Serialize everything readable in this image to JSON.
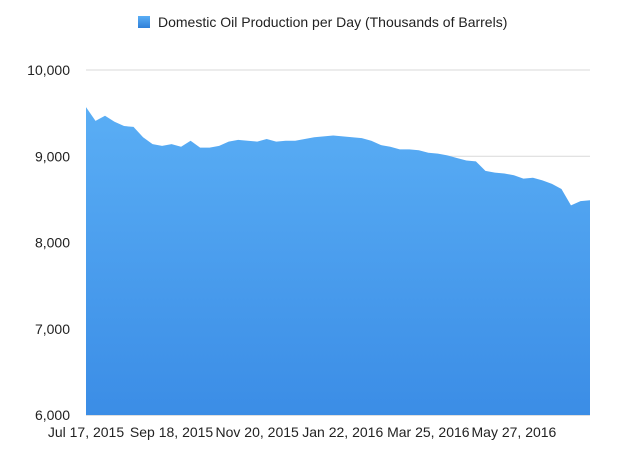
{
  "chart_data": {
    "type": "area",
    "title": "",
    "xlabel": "",
    "ylabel": "",
    "ylim": [
      6000,
      10000
    ],
    "yticks": [
      6000,
      7000,
      8000,
      9000,
      10000
    ],
    "ytick_labels": [
      "6,000",
      "7,000",
      "8,000",
      "9,000",
      "10,000"
    ],
    "xtick_labels": [
      "Jul 17, 2015",
      "Sep 18, 2015",
      "Nov 20, 2015",
      "Jan 22, 2016",
      "Mar 25, 2016",
      "May 27, 2016"
    ],
    "xtick_indices": [
      0,
      9,
      18,
      27,
      36,
      45
    ],
    "grid": true,
    "legend_position": "top",
    "colors": {
      "fill_top": "#5aaef5",
      "fill_bottom": "#3b8de6"
    },
    "series": [
      {
        "name": "Domestic Oil Production per Day (Thousands of Barrels)",
        "values": [
          9570,
          9410,
          9470,
          9400,
          9350,
          9340,
          9220,
          9140,
          9120,
          9140,
          9110,
          9180,
          9100,
          9100,
          9120,
          9170,
          9190,
          9180,
          9170,
          9200,
          9170,
          9180,
          9180,
          9200,
          9220,
          9230,
          9240,
          9230,
          9220,
          9210,
          9180,
          9130,
          9110,
          9080,
          9080,
          9070,
          9040,
          9030,
          9010,
          8980,
          8950,
          8940,
          8830,
          8810,
          8800,
          8780,
          8740,
          8750,
          8720,
          8680,
          8620,
          8430,
          8480,
          8490
        ]
      }
    ]
  }
}
